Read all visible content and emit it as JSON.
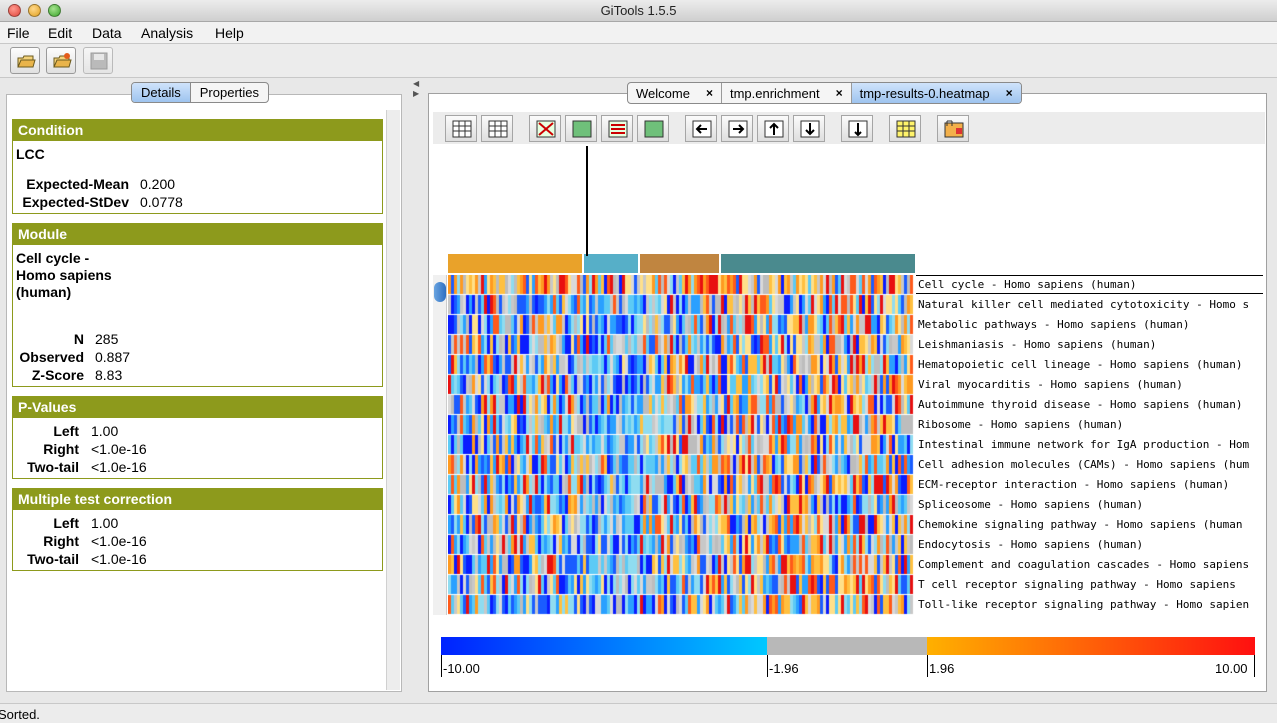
{
  "window": {
    "title": "GiTools 1.5.5"
  },
  "menu": [
    "File",
    "Edit",
    "Data",
    "Analysis",
    "Help"
  ],
  "left_tabs": {
    "details": "Details",
    "properties": "Properties"
  },
  "condition": {
    "header": "Condition",
    "name": "LCC",
    "expected_mean_label": "Expected-Mean",
    "expected_mean": "0.200",
    "expected_stdev_label": "Expected-StDev",
    "expected_stdev": "0.0778"
  },
  "module": {
    "header": "Module",
    "name_line1": "Cell cycle -",
    "name_line2": "Homo sapiens",
    "name_line3": "(human)",
    "n_label": "N",
    "n": "285",
    "observed_label": "Observed",
    "observed": "0.887",
    "zscore_label": "Z-Score",
    "zscore": "8.83"
  },
  "pvalues": {
    "header": "P-Values",
    "left_label": "Left",
    "left": "1.00",
    "right_label": "Right",
    "right": "<1.0e-16",
    "twotail_label": "Two-tail",
    "twotail": "<1.0e-16"
  },
  "mtc": {
    "header": "Multiple test correction",
    "left_label": "Left",
    "left": "1.00",
    "right_label": "Right",
    "right": "<1.0e-16",
    "twotail_label": "Two-tail",
    "twotail": "<1.0e-16"
  },
  "doc_tabs": [
    {
      "label": "Welcome",
      "close": "×"
    },
    {
      "label": "tmp.enrichment",
      "close": "×"
    },
    {
      "label": "tmp-results-0.heatmap",
      "close": "×"
    }
  ],
  "column_groups": [
    {
      "color": "#e9a22a"
    },
    {
      "color": "#56afc8"
    },
    {
      "color": "#c08540"
    },
    {
      "color": "#4a8a8e"
    }
  ],
  "row_labels": [
    "Cell cycle - Homo sapiens (human)",
    "Natural killer cell mediated cytotoxicity - Homo s",
    "Metabolic pathways - Homo sapiens (human)",
    "Leishmaniasis - Homo sapiens (human)",
    "Hematopoietic cell lineage - Homo sapiens (human)",
    "Viral myocarditis - Homo sapiens (human)",
    "Autoimmune thyroid disease - Homo sapiens (human)",
    "Ribosome - Homo sapiens (human)",
    "Intestinal immune network for IgA production - Hom",
    "Cell adhesion molecules (CAMs) - Homo sapiens (hum",
    "ECM-receptor interaction - Homo sapiens (human)",
    "Spliceosome - Homo sapiens (human)",
    "Chemokine signaling pathway - Homo sapiens (human",
    "Endocytosis - Homo sapiens (human)",
    "Complement and coagulation cascades - Homo sapiens",
    "T cell receptor signaling pathway - Homo sapiens",
    "Toll-like receptor signaling pathway - Homo sapien"
  ],
  "color_scale": {
    "labels": [
      "-10.00",
      "-1.96",
      "1.96",
      "10.00"
    ],
    "colors": {
      "min": "#0022ff",
      "neg": "#00c8ff",
      "mid": "#b8b8b8",
      "pos": "#ffb000",
      "max": "#ff1010"
    }
  },
  "status": "Sorted."
}
